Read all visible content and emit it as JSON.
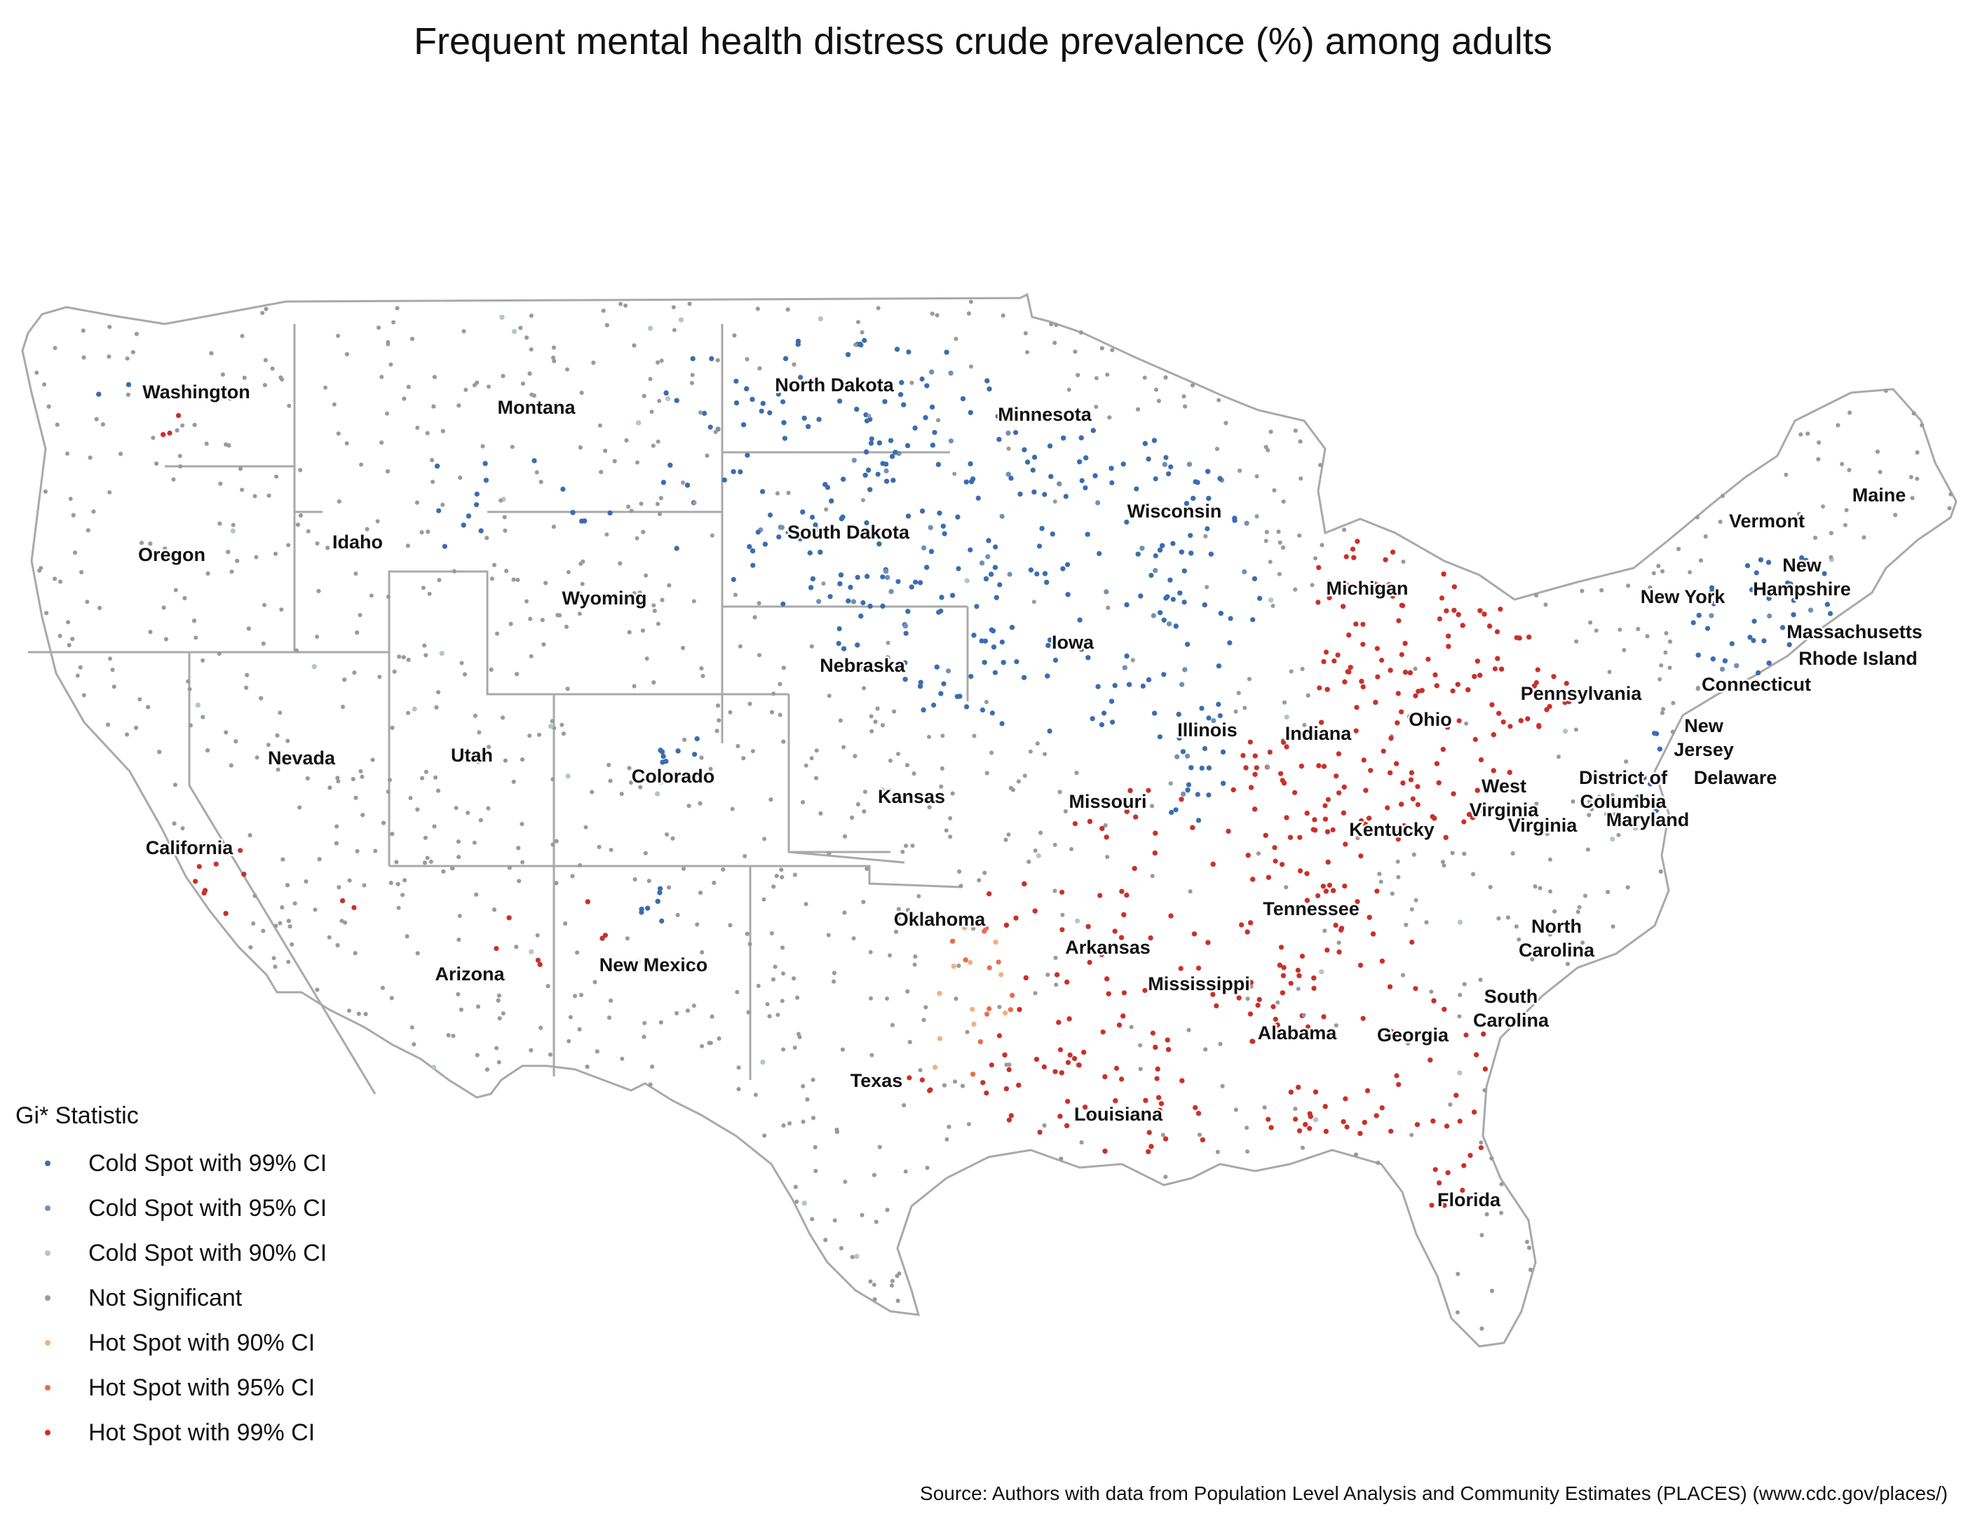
{
  "title": "Frequent mental health distress crude prevalence (%) among adults",
  "legend": {
    "title": "Gi* Statistic",
    "items": [
      {
        "label": "Cold Spot with 99% CI",
        "color": "#3a6db0"
      },
      {
        "label": "Cold Spot with 95% CI",
        "color": "#7390b5"
      },
      {
        "label": "Cold Spot with 90% CI",
        "color": "#b9c4c9"
      },
      {
        "label": "Not Significant",
        "color": "#9a9a9a"
      },
      {
        "label": "Hot Spot with 90% CI",
        "color": "#f2b07e"
      },
      {
        "label": "Hot Spot with 95% CI",
        "color": "#ea6d4d"
      },
      {
        "label": "Hot Spot with 99% CI",
        "color": "#c9302a"
      }
    ]
  },
  "source": "Source: Authors with data from Population Level Analysis and Community Estimates (PLACES) (www.cdc.gov/places/)",
  "states": [
    "Washington",
    "Montana",
    "North Dakota",
    "Minnesota",
    "Maine",
    "Oregon",
    "Idaho",
    "South Dakota",
    "Wisconsin",
    "Vermont",
    "New Hampshire",
    "Wyoming",
    "Michigan",
    "New York",
    "Massachusetts",
    "Rhode Island",
    "Iowa",
    "Nebraska",
    "Pennsylvania",
    "Connecticut",
    "Ohio",
    "New Jersey",
    "Illinois",
    "Indiana",
    "Nevada",
    "Utah",
    "Colorado",
    "District of Columbia",
    "Delaware",
    "West Virginia",
    "Kansas",
    "Missouri",
    "Virginia",
    "Maryland",
    "Kentucky",
    "California",
    "Tennessee",
    "Oklahoma",
    "North Carolina",
    "Arkansas",
    "New Mexico",
    "Arizona",
    "Mississippi",
    "South Carolina",
    "Alabama",
    "Georgia",
    "Texas",
    "Louisiana",
    "Florida"
  ]
}
